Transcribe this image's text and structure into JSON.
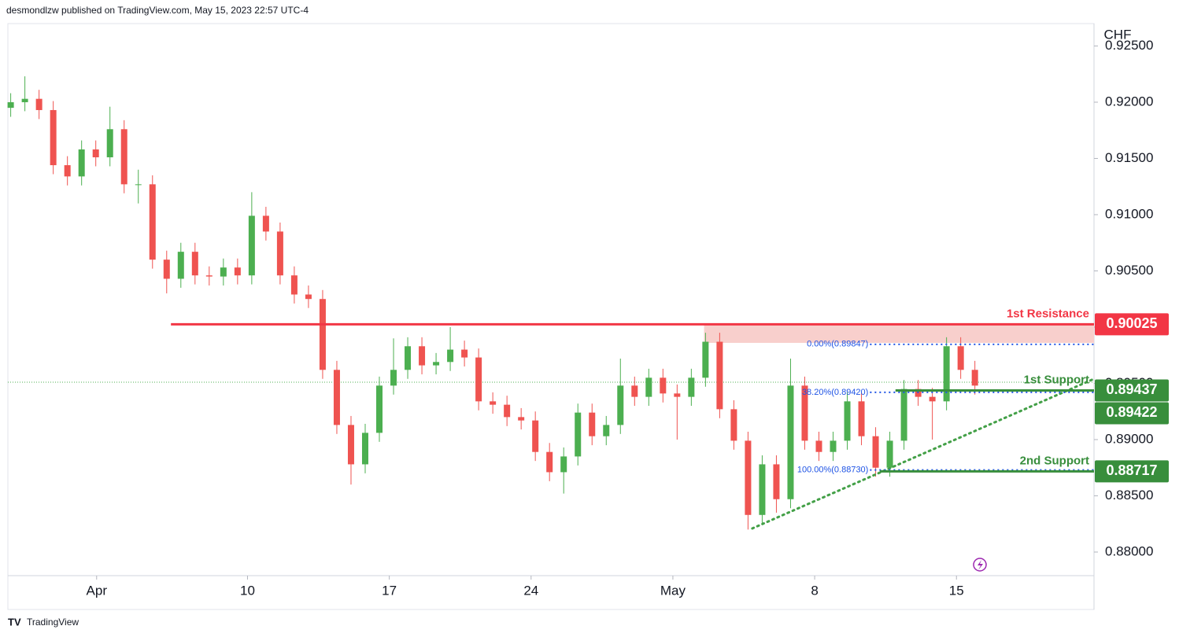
{
  "header": "desmondlzw published on TradingView.com, May 15, 2023 22:57 UTC-4",
  "footer": "TradingView",
  "chart_data": {
    "type": "candlestick",
    "currency": "CHF",
    "up_color": "#4caf50",
    "down_color": "#ef5350",
    "xlim": [
      -0.2,
      76.4
    ],
    "ylim": [
      0.8779,
      0.92699
    ],
    "xticks": [
      {
        "value": 6.06,
        "label": "Apr"
      },
      {
        "value": 16.7,
        "label": "10"
      },
      {
        "value": 26.7,
        "label": "17"
      },
      {
        "value": 36.7,
        "label": "24"
      },
      {
        "value": 46.7,
        "label": "May"
      },
      {
        "value": 56.7,
        "label": "8"
      },
      {
        "value": 66.7,
        "label": "15"
      }
    ],
    "yticks": [
      {
        "value": 0.88,
        "label": "0.88000"
      },
      {
        "value": 0.885,
        "label": "0.88500"
      },
      {
        "value": 0.89,
        "label": "0.89000"
      },
      {
        "value": 0.895,
        "label": "0.89500"
      },
      {
        "value": 0.9,
        "label": "0.90000"
      },
      {
        "value": 0.905,
        "label": "0.90500"
      },
      {
        "value": 0.91,
        "label": "0.91000"
      },
      {
        "value": 0.915,
        "label": "0.91500"
      },
      {
        "value": 0.92,
        "label": "0.92000"
      },
      {
        "value": 0.925,
        "label": "0.92500"
      }
    ],
    "open": [
      0.9195,
      0.92,
      0.9203,
      0.9193,
      0.9144,
      0.9134,
      0.9158,
      0.9151,
      0.9176,
      0.9127,
      0.9127,
      0.906,
      0.9043,
      0.9067,
      0.9046,
      0.9045,
      0.9053,
      0.9046,
      0.9099,
      0.9085,
      0.9046,
      0.9029,
      0.9025,
      0.8962,
      0.8913,
      0.8878,
      0.8906,
      0.8948,
      0.8962,
      0.8983,
      0.8966,
      0.8969,
      0.898,
      0.8973,
      0.8934,
      0.8931,
      0.892,
      0.8917,
      0.8889,
      0.8871,
      0.8885,
      0.8924,
      0.8903,
      0.8913,
      0.8948,
      0.8938,
      0.8955,
      0.8941,
      0.8938,
      0.8955,
      0.8987,
      0.8927,
      0.8899,
      0.8833,
      0.8878,
      0.8847,
      0.8948,
      0.8899,
      0.8889,
      0.8899,
      0.8934,
      0.8903,
      0.8875,
      0.8899,
      0.8945,
      0.8938,
      0.8934,
      0.8983,
      0.8962
    ],
    "high": [
      0.9208,
      0.9223,
      0.9211,
      0.9201,
      0.9152,
      0.9166,
      0.9166,
      0.9196,
      0.9184,
      0.914,
      0.9135,
      0.9068,
      0.9075,
      0.9075,
      0.9054,
      0.9061,
      0.9061,
      0.912,
      0.9107,
      0.9093,
      0.9054,
      0.9037,
      0.9033,
      0.897,
      0.8921,
      0.8914,
      0.8956,
      0.899,
      0.8991,
      0.8991,
      0.8977,
      0.9,
      0.8988,
      0.8981,
      0.8942,
      0.8939,
      0.8928,
      0.8925,
      0.8897,
      0.8893,
      0.8932,
      0.8932,
      0.8921,
      0.8972,
      0.8956,
      0.8963,
      0.8963,
      0.8949,
      0.8963,
      0.8995,
      0.8995,
      0.8935,
      0.8907,
      0.8886,
      0.8886,
      0.8972,
      0.8956,
      0.8907,
      0.8907,
      0.8942,
      0.8942,
      0.8911,
      0.8907,
      0.8953,
      0.8953,
      0.8946,
      0.8991,
      0.8991,
      0.897
    ],
    "low": [
      0.9187,
      0.9192,
      0.9185,
      0.9136,
      0.9126,
      0.9126,
      0.9143,
      0.9143,
      0.9119,
      0.911,
      0.9052,
      0.903,
      0.9035,
      0.9038,
      0.9037,
      0.9037,
      0.9038,
      0.9038,
      0.9077,
      0.9038,
      0.9021,
      0.9017,
      0.8954,
      0.8905,
      0.886,
      0.887,
      0.8898,
      0.894,
      0.8954,
      0.8958,
      0.8958,
      0.8961,
      0.8965,
      0.8926,
      0.8923,
      0.8912,
      0.8909,
      0.8881,
      0.8863,
      0.8852,
      0.8877,
      0.8895,
      0.8895,
      0.8905,
      0.893,
      0.893,
      0.8933,
      0.89,
      0.893,
      0.8947,
      0.8919,
      0.8891,
      0.882,
      0.8825,
      0.8835,
      0.8839,
      0.8891,
      0.8881,
      0.8881,
      0.8891,
      0.8895,
      0.8867,
      0.8867,
      0.8891,
      0.893,
      0.89,
      0.8926,
      0.8954,
      0.894
    ],
    "close": [
      0.92,
      0.9203,
      0.9193,
      0.9144,
      0.9134,
      0.9158,
      0.9151,
      0.9176,
      0.9127,
      0.9127,
      0.906,
      0.9043,
      0.9067,
      0.9046,
      0.9045,
      0.9053,
      0.9046,
      0.9099,
      0.9085,
      0.9046,
      0.9029,
      0.9025,
      0.8962,
      0.8913,
      0.8878,
      0.8906,
      0.8948,
      0.8962,
      0.8983,
      0.8966,
      0.8969,
      0.898,
      0.8973,
      0.8934,
      0.8931,
      0.892,
      0.8917,
      0.8889,
      0.8871,
      0.8885,
      0.8924,
      0.8903,
      0.8913,
      0.8948,
      0.8938,
      0.8955,
      0.8941,
      0.8938,
      0.8955,
      0.8987,
      0.8927,
      0.8899,
      0.8833,
      0.8878,
      0.8847,
      0.8948,
      0.8899,
      0.8889,
      0.8899,
      0.8934,
      0.8903,
      0.8875,
      0.8899,
      0.8945,
      0.8938,
      0.8934,
      0.8983,
      0.8962,
      0.8948
    ],
    "last_price_line": 0.8951,
    "resistance_zone": {
      "from": 48.9,
      "range": [
        0.8986,
        0.90025
      ],
      "color": "#f8cfcc"
    },
    "levels": [
      {
        "name": "1st Resistance",
        "value": 0.90025,
        "color": "#f23645",
        "from": 11.3
      },
      {
        "name": "1st Support",
        "value": 0.89437,
        "color": "#388e3c",
        "from": 62.4
      },
      {
        "name": "2nd Support",
        "value": 0.88717,
        "color": "#388e3c",
        "from": 61.3
      }
    ],
    "price_labels": [
      {
        "value": 0.89422,
        "color": "#388e3c"
      }
    ],
    "fib_from": 60.6,
    "fib_color": "#1e53e5",
    "fib": [
      {
        "label": "0.00%(0.89847)",
        "value": 0.89847
      },
      {
        "label": "38.20%(0.89420)",
        "value": 0.8942
      },
      {
        "label": "100.00%(0.88730)",
        "value": 0.8873
      }
    ],
    "trendline": {
      "x": [
        52.3,
        76.4
      ],
      "y": [
        0.8821,
        0.8954
      ],
      "color": "#43a047"
    }
  }
}
